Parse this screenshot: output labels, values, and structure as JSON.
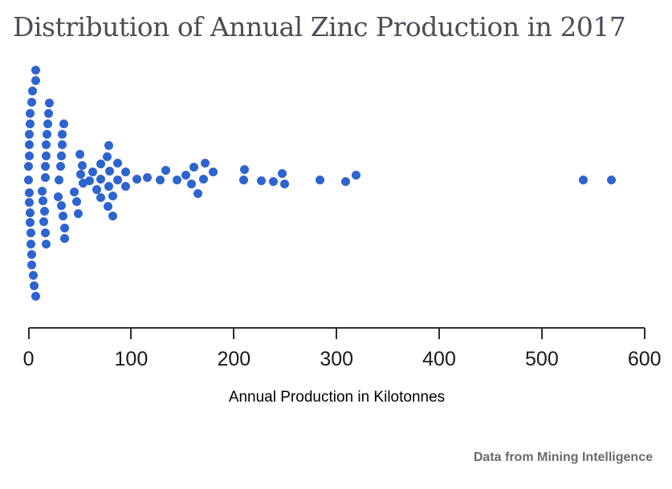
{
  "title": "Distribution of Annual Zinc Production in 2017",
  "credit": "Data from Mining Intelligence",
  "chart_data": {
    "type": "scatter",
    "variant": "beeswarm",
    "title": "Distribution of Annual Zinc Production in 2017",
    "xlabel": "Annual Production in Kilotonnes",
    "unit": "kilotonnes",
    "xlim": [
      0,
      600
    ],
    "xticks": [
      0,
      100,
      200,
      300,
      400,
      500,
      600
    ],
    "grid": false,
    "legend": "none",
    "dot_color": "#2d64cf",
    "n_points": 94,
    "points_note": "each point = [annual production in kilotonnes, vertical swarm offset in px from center line]",
    "points": [
      [
        6.6,
        -137
      ],
      [
        6.6,
        -124
      ],
      [
        4.0,
        -111
      ],
      [
        3.2,
        -97
      ],
      [
        1.6,
        -83
      ],
      [
        1.6,
        -70
      ],
      [
        0.9,
        -57
      ],
      [
        0.9,
        -44
      ],
      [
        0.3,
        -30
      ],
      [
        0.0,
        -17
      ],
      [
        0.0,
        0
      ],
      [
        0.9,
        16
      ],
      [
        0.3,
        28
      ],
      [
        1.3,
        41
      ],
      [
        1.3,
        53
      ],
      [
        1.9,
        66
      ],
      [
        2.1,
        80
      ],
      [
        2.7,
        93
      ],
      [
        3.4,
        106
      ],
      [
        4.2,
        119
      ],
      [
        5.4,
        132
      ],
      [
        7.0,
        145
      ],
      [
        20.4,
        -96
      ],
      [
        19.1,
        -83
      ],
      [
        18.5,
        -70
      ],
      [
        17.8,
        -57
      ],
      [
        17.3,
        -44
      ],
      [
        17.0,
        -30
      ],
      [
        16.5,
        -17
      ],
      [
        16.0,
        -3
      ],
      [
        12.8,
        14
      ],
      [
        13.8,
        26
      ],
      [
        15.2,
        39
      ],
      [
        14.6,
        52
      ],
      [
        16.5,
        66
      ],
      [
        17.1,
        80
      ],
      [
        34.2,
        -70
      ],
      [
        32.9,
        -57
      ],
      [
        32.6,
        -44
      ],
      [
        32.2,
        -30
      ],
      [
        31.4,
        -17
      ],
      [
        29.3,
        0
      ],
      [
        28.5,
        21
      ],
      [
        32.2,
        32
      ],
      [
        33.4,
        45
      ],
      [
        34.7,
        60
      ],
      [
        35.1,
        73
      ],
      [
        49.6,
        -32
      ],
      [
        52.5,
        -18
      ],
      [
        50.4,
        -7
      ],
      [
        52.7,
        4
      ],
      [
        44.1,
        15
      ],
      [
        47.2,
        27
      ],
      [
        48.0,
        42
      ],
      [
        62.1,
        -10
      ],
      [
        59.5,
        1
      ],
      [
        66.0,
        12
      ],
      [
        69.9,
        -20
      ],
      [
        69.9,
        -1
      ],
      [
        69.9,
        22
      ],
      [
        77.8,
        -43
      ],
      [
        76.4,
        -29
      ],
      [
        79.1,
        -11
      ],
      [
        77.8,
        8
      ],
      [
        81.7,
        20
      ],
      [
        77.0,
        33
      ],
      [
        81.7,
        45
      ],
      [
        86.9,
        -21
      ],
      [
        86.9,
        0
      ],
      [
        94.7,
        -10
      ],
      [
        94.2,
        8
      ],
      [
        105.1,
        -1
      ],
      [
        115.5,
        -3
      ],
      [
        127.8,
        0
      ],
      [
        133.8,
        -12
      ],
      [
        144.2,
        0
      ],
      [
        153.4,
        -6
      ],
      [
        158.6,
        5
      ],
      [
        161.2,
        -16
      ],
      [
        165.1,
        17
      ],
      [
        170.3,
        -1
      ],
      [
        171.6,
        -21
      ],
      [
        179.5,
        -10
      ],
      [
        209.4,
        0
      ],
      [
        210.0,
        -13
      ],
      [
        226.4,
        1
      ],
      [
        238.2,
        2
      ],
      [
        247.3,
        -8
      ],
      [
        249.4,
        5
      ],
      [
        283.8,
        0
      ],
      [
        308.6,
        2
      ],
      [
        318.9,
        -6
      ],
      [
        540.2,
        0
      ],
      [
        568.1,
        0
      ]
    ]
  }
}
